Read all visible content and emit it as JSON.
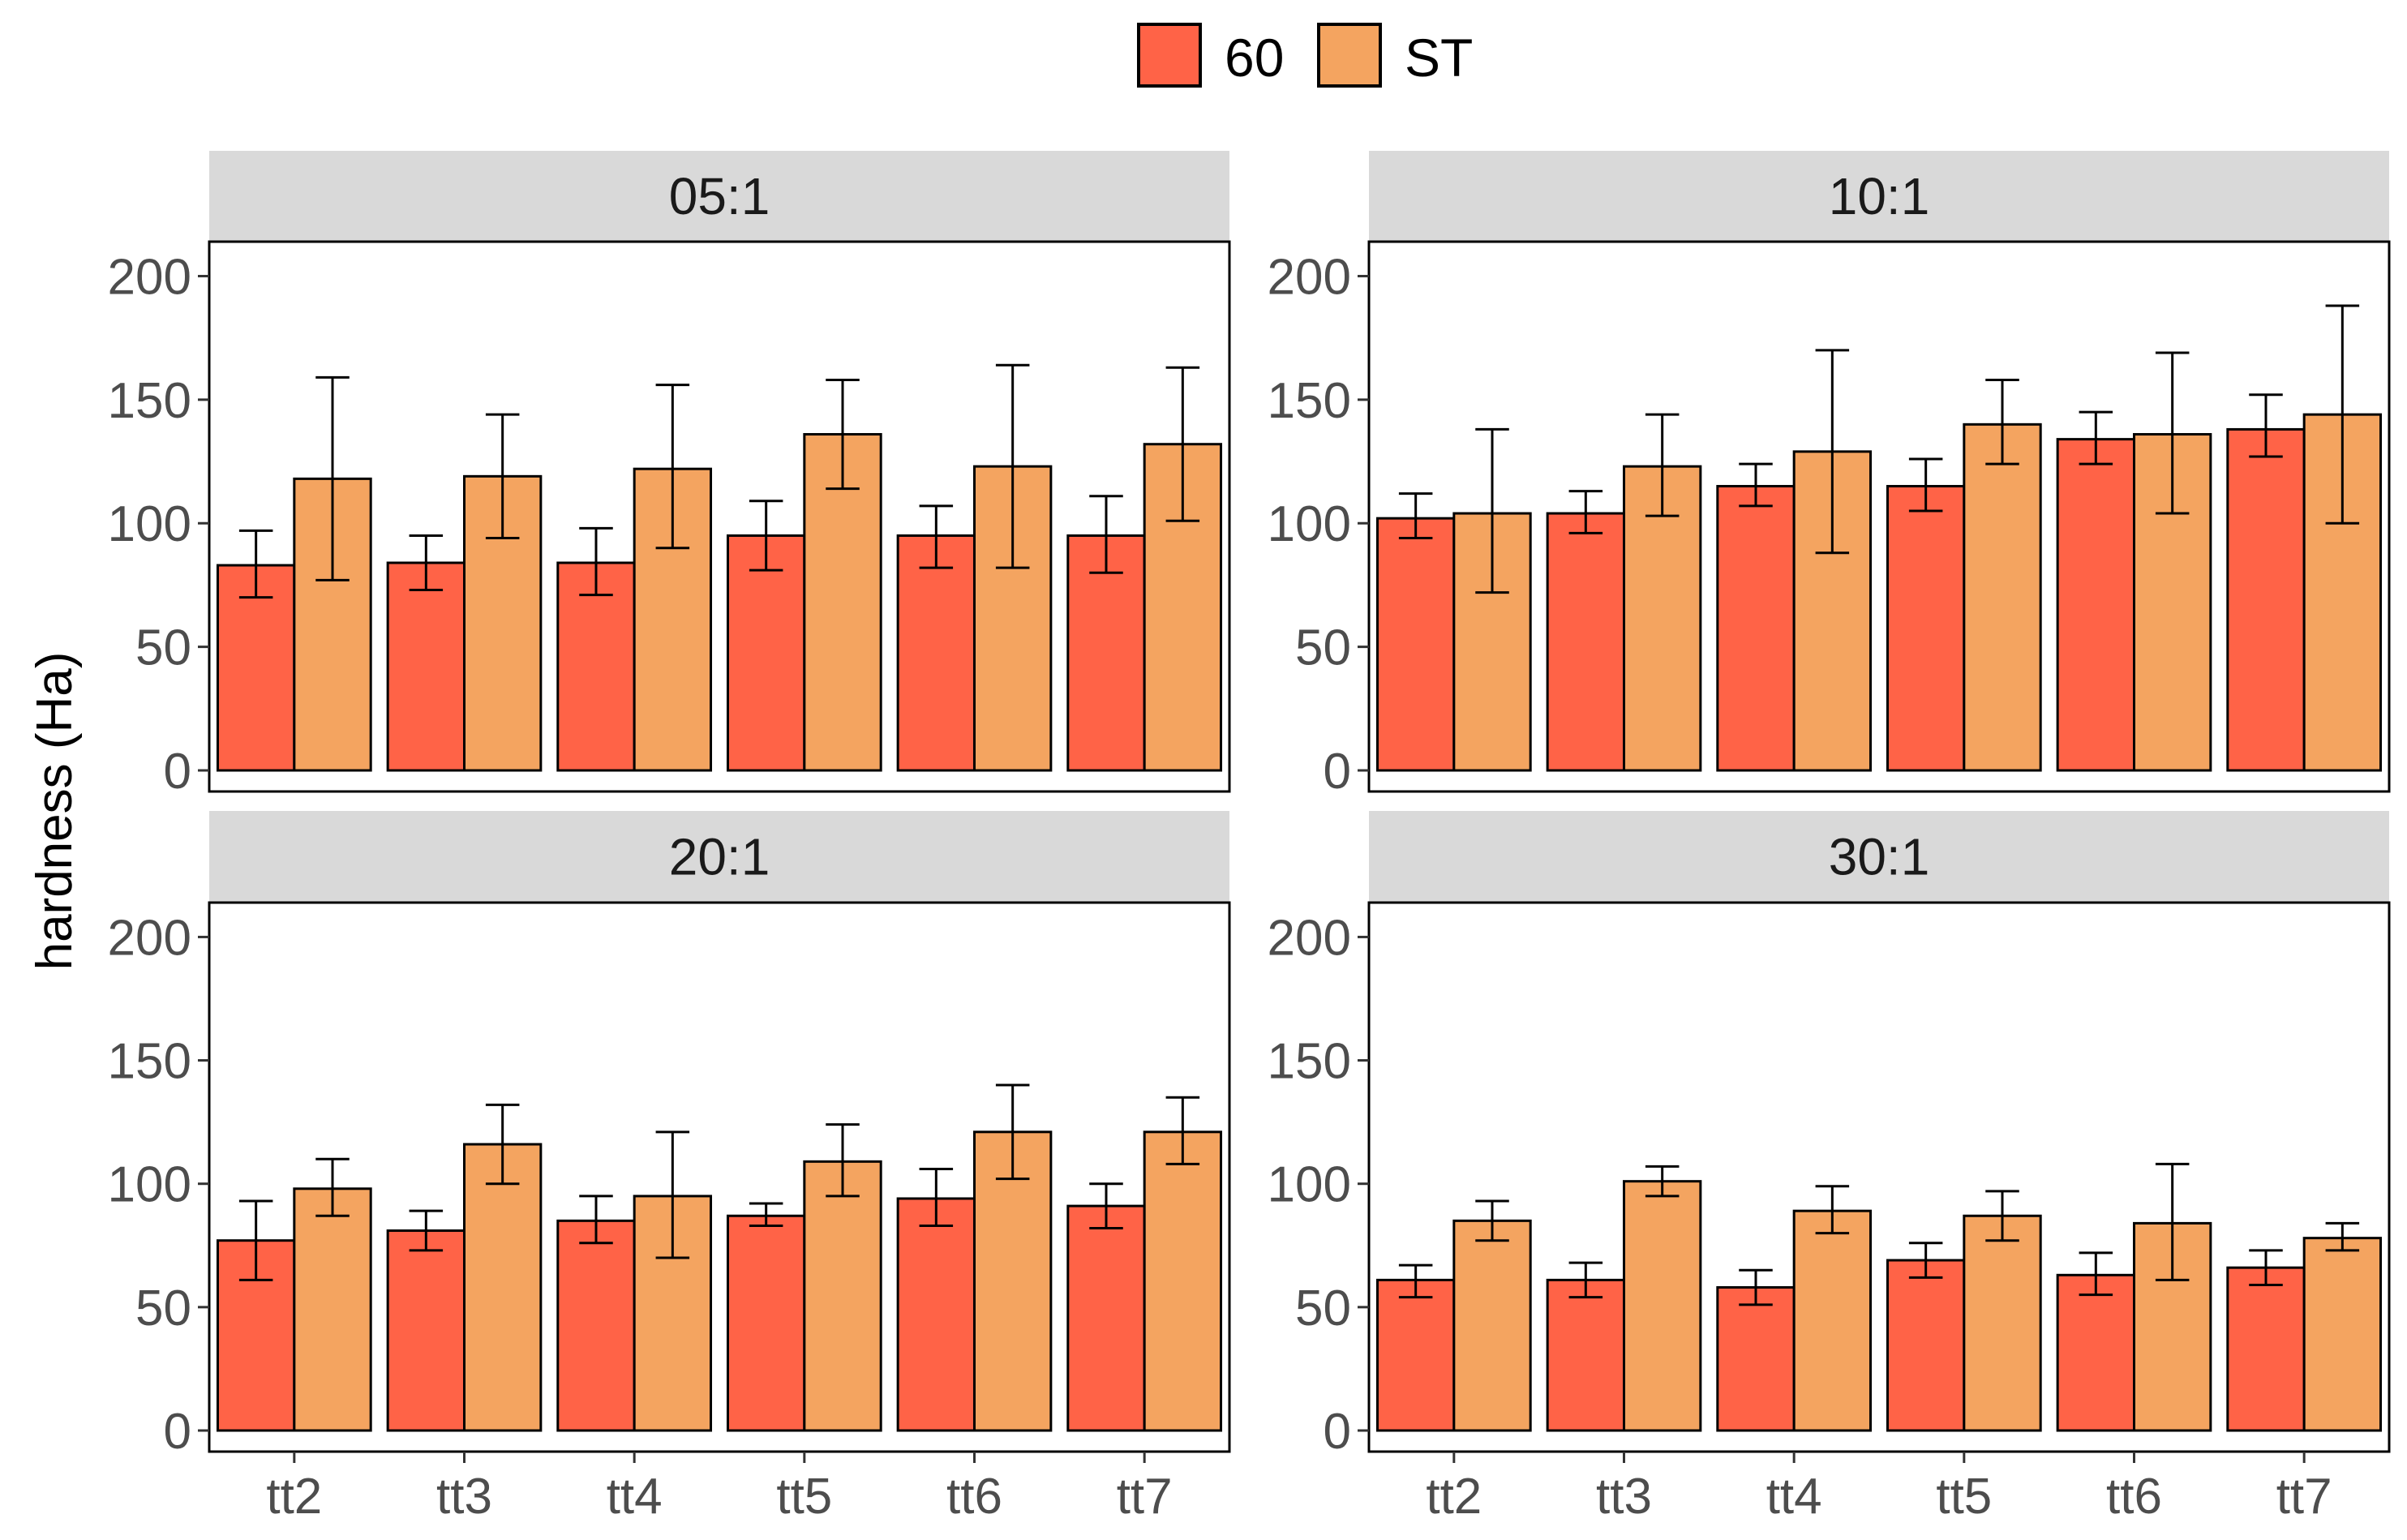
{
  "chart_data": {
    "type": "bar",
    "ylabel": "hardness (Ha)",
    "xlabel": "",
    "ylim": [
      0,
      210
    ],
    "yticks": [
      0,
      50,
      100,
      150,
      200
    ],
    "categories": [
      "tt2",
      "tt3",
      "tt4",
      "tt5",
      "tt6",
      "tt7"
    ],
    "legend": {
      "position": "top",
      "entries": [
        {
          "name": "60",
          "color": "#FF6347"
        },
        {
          "name": "ST",
          "color": "#F4A460"
        }
      ]
    },
    "panels": [
      {
        "title": "05:1",
        "series": [
          {
            "name": "60",
            "values": [
              83,
              84,
              84,
              95,
              95,
              95
            ],
            "err_low": [
              70,
              73,
              71,
              81,
              82,
              80
            ],
            "err_high": [
              97,
              95,
              98,
              109,
              107,
              111
            ]
          },
          {
            "name": "ST",
            "values": [
              118,
              119,
              122,
              136,
              123,
              132
            ],
            "err_low": [
              77,
              94,
              90,
              114,
              82,
              101
            ],
            "err_high": [
              159,
              144,
              156,
              158,
              164,
              163
            ]
          }
        ]
      },
      {
        "title": "10:1",
        "series": [
          {
            "name": "60",
            "values": [
              102,
              104,
              115,
              115,
              134,
              138
            ],
            "err_low": [
              94,
              96,
              107,
              105,
              124,
              127
            ],
            "err_high": [
              112,
              113,
              124,
              126,
              145,
              152
            ]
          },
          {
            "name": "ST",
            "values": [
              104,
              123,
              129,
              140,
              136,
              144
            ],
            "err_low": [
              72,
              103,
              88,
              124,
              104,
              100
            ],
            "err_high": [
              138,
              144,
              170,
              158,
              169,
              188
            ]
          }
        ]
      },
      {
        "title": "20:1",
        "series": [
          {
            "name": "60",
            "values": [
              77,
              81,
              85,
              87,
              94,
              91
            ],
            "err_low": [
              61,
              73,
              76,
              83,
              83,
              82
            ],
            "err_high": [
              93,
              89,
              95,
              92,
              106,
              100
            ]
          },
          {
            "name": "ST",
            "values": [
              98,
              116,
              95,
              109,
              121,
              121
            ],
            "err_low": [
              87,
              100,
              70,
              95,
              102,
              108
            ],
            "err_high": [
              110,
              132,
              121,
              124,
              140,
              135
            ]
          }
        ]
      },
      {
        "title": "30:1",
        "series": [
          {
            "name": "60",
            "values": [
              61,
              61,
              58,
              69,
              63,
              66
            ],
            "err_low": [
              54,
              54,
              51,
              62,
              55,
              59
            ],
            "err_high": [
              67,
              68,
              65,
              76,
              72,
              73
            ]
          },
          {
            "name": "ST",
            "values": [
              85,
              101,
              89,
              87,
              84,
              78
            ],
            "err_low": [
              77,
              95,
              80,
              77,
              61,
              73
            ],
            "err_high": [
              93,
              107,
              99,
              97,
              108,
              84
            ]
          }
        ]
      }
    ]
  }
}
